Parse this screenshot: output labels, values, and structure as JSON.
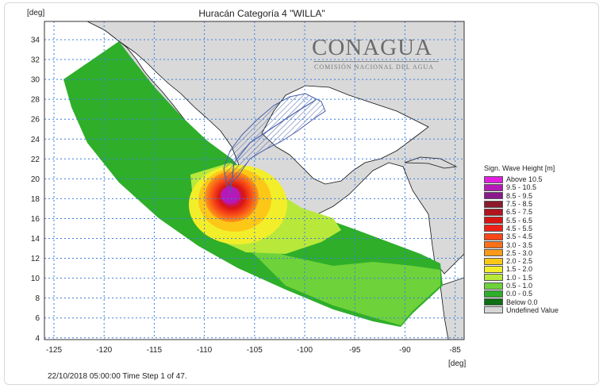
{
  "title": "Huracán Categoría 4 \"WILLA\"",
  "units": {
    "x": "[deg]",
    "y": "[deg]"
  },
  "x_ticks": [
    "-125",
    "-120",
    "-115",
    "-110",
    "-105",
    "-100",
    "-95",
    "-90",
    "-85"
  ],
  "y_ticks": [
    "34",
    "32",
    "30",
    "28",
    "26",
    "24",
    "22",
    "20",
    "18",
    "16",
    "14",
    "12",
    "10",
    "8",
    "6",
    "4"
  ],
  "logo": {
    "name": "CONAGUA",
    "subtitle": "COMISIÓN NACIONAL DEL AGUA"
  },
  "status": "22/10/2018 05:00:00  Time Step 1 of 47.",
  "legend": {
    "title": "Sign. Wave Height [m]",
    "items": [
      {
        "label": "Above 10.5",
        "color": "#e11fe0"
      },
      {
        "label": "9.5 - 10.5",
        "color": "#b51ab8"
      },
      {
        "label": "8.5 -   9.5",
        "color": "#8a1a8a"
      },
      {
        "label": "7.5 -   8.5",
        "color": "#8b1a2a"
      },
      {
        "label": "6.5 -   7.5",
        "color": "#b0141e"
      },
      {
        "label": "5.5 -   6.5",
        "color": "#d81414"
      },
      {
        "label": "4.5 -   5.5",
        "color": "#f02018"
      },
      {
        "label": "3.5 -   4.5",
        "color": "#f84818"
      },
      {
        "label": "3.0 -   3.5",
        "color": "#fa7018"
      },
      {
        "label": "2.5 -   3.0",
        "color": "#fb9a18"
      },
      {
        "label": "2.0 -   2.5",
        "color": "#fdc718"
      },
      {
        "label": "1.5 -   2.0",
        "color": "#f3ee2a"
      },
      {
        "label": "1.0 -   1.5",
        "color": "#b8e83a"
      },
      {
        "label": "0.5 -   1.0",
        "color": "#6ed23a"
      },
      {
        "label": "0.0 -   0.5",
        "color": "#2fae2a"
      },
      {
        "label": "Below   0.0",
        "color": "#0d6e14"
      },
      {
        "label": "Undefined Value",
        "color": "#d6d6d6"
      }
    ]
  },
  "colors": {
    "land": "#d9d9d9",
    "grid": "#3d7fe0",
    "forecast_cone": "#4a5fa8"
  }
}
